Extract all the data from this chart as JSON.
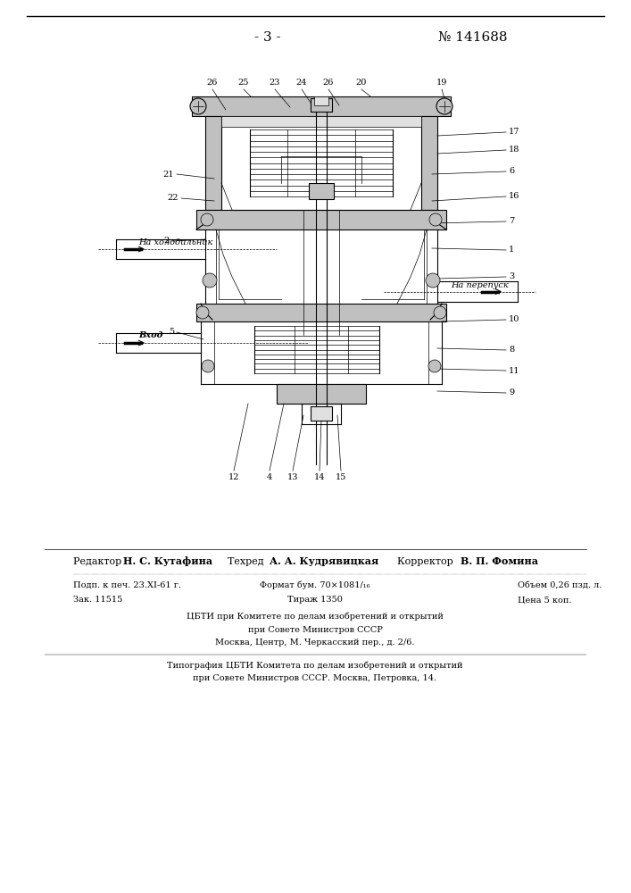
{
  "page_number": "- 3 -",
  "patent_number": "№ 141688",
  "bg_color": "#ffffff",
  "footer": {
    "line2_left": "Подп. к печ. 23.XI-61 г.",
    "line2_mid": "Формат бум. 70×1081/₁₆",
    "line2_right": "Объем 0,26 пзд. л.",
    "line3_left": "Зак. 11515",
    "line3_mid": "Тираж 1350",
    "line3_right": "Цена 5 коп.",
    "cbti_line1": "ЦБТИ при Комитете по делам изобретений и открытий",
    "cbti_line2": "при Совете Министров СССР",
    "cbti_line3": "Москва, Центр, М. Черкасский пер., д. 2/6.",
    "tip_line1": "Типография ЦБТИ Комитета по делам изобретений и открытий",
    "tip_line2": "при Совете Министров СССР. Москва, Петровка, 14."
  },
  "font_size_small": 7,
  "font_size_medium": 8
}
